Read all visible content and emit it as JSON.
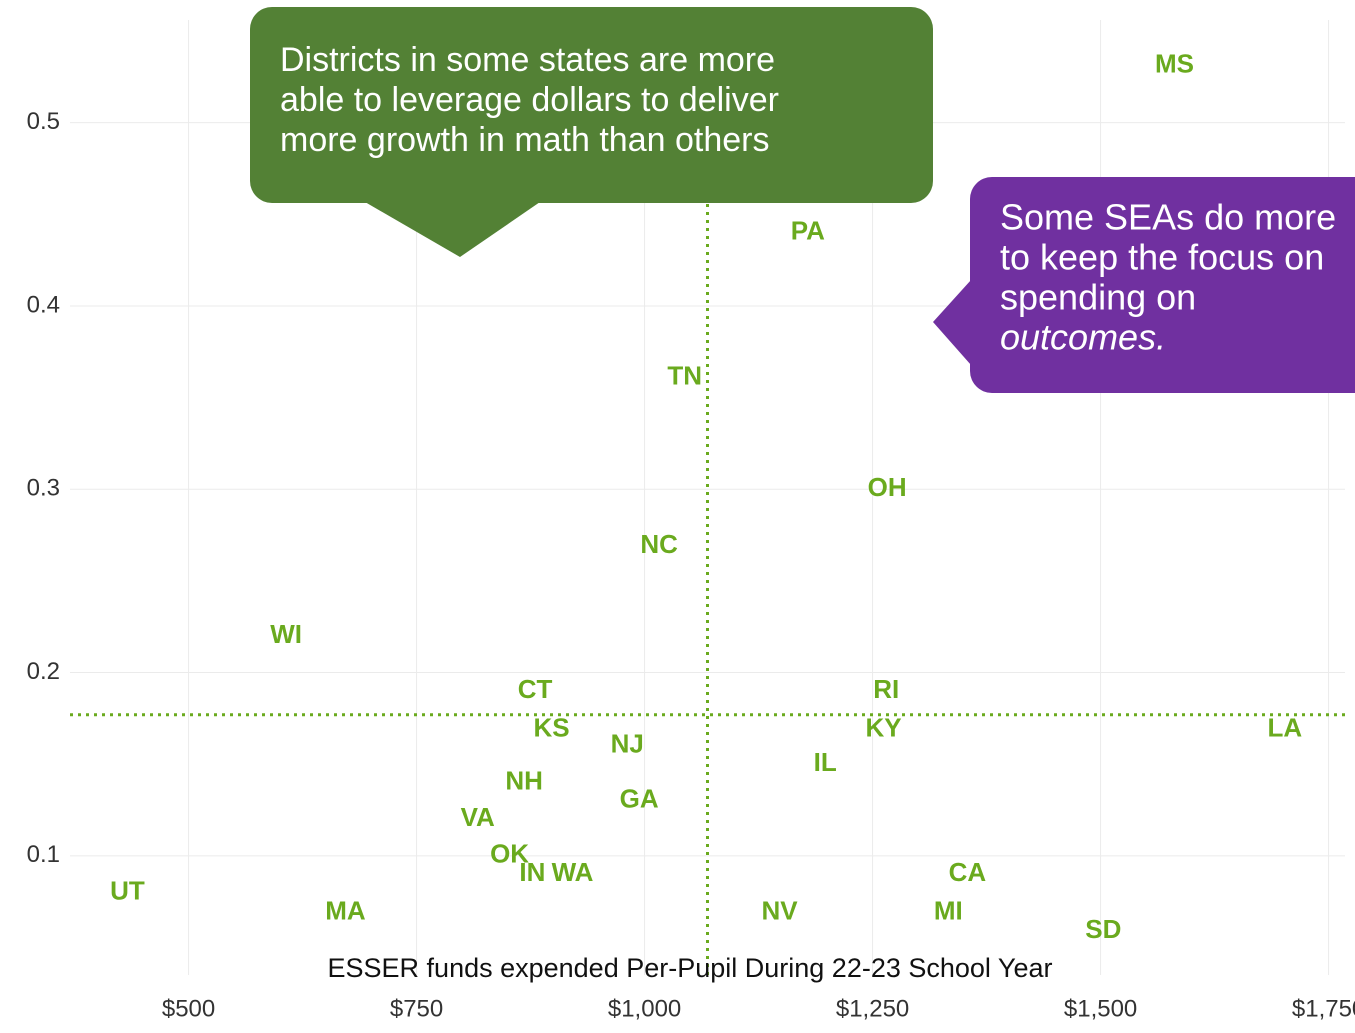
{
  "chart_data": {
    "type": "scatter",
    "labels": [
      "MS",
      "PA",
      "TN",
      "OH",
      "NC",
      "WI",
      "CT",
      "RI",
      "KS",
      "KY",
      "LA",
      "NJ",
      "IL",
      "NH",
      "GA",
      "VA",
      "OK",
      "IN",
      "WA",
      "CA",
      "UT",
      "MA",
      "NV",
      "MI",
      "SD"
    ],
    "x": [
      1581,
      1179,
      1044,
      1266,
      1016,
      607,
      880,
      1265,
      898,
      1262,
      1702,
      981,
      1198,
      868,
      994,
      817,
      852,
      877,
      921,
      1354,
      433,
      672,
      1148,
      1333,
      1503
    ],
    "y": [
      0.531,
      0.44,
      0.361,
      0.3,
      0.269,
      0.22,
      0.19,
      0.19,
      0.169,
      0.169,
      0.169,
      0.16,
      0.15,
      0.14,
      0.13,
      0.12,
      0.1,
      0.09,
      0.09,
      0.09,
      0.08,
      0.069,
      0.069,
      0.069,
      0.059
    ],
    "color": "#6aaa1e",
    "xlim": [
      370,
      1768
    ],
    "ylim": [
      0.035,
      0.556
    ],
    "xticks": [
      {
        "value": 500,
        "label": "$500"
      },
      {
        "value": 750,
        "label": "$750"
      },
      {
        "value": 1000,
        "label": "$1,000"
      },
      {
        "value": 1250,
        "label": "$1,250"
      },
      {
        "value": 1500,
        "label": "$1,500"
      },
      {
        "value": 1750,
        "label": "$1,750"
      }
    ],
    "yticks": [
      0.1,
      0.2,
      0.3,
      0.4,
      0.5
    ],
    "grid": true,
    "xlabel": "ESSER funds expended Per-Pupil During 22-23 School Year",
    "vline": 1069,
    "hline": 0.177,
    "annotations": [
      {
        "color": "#538135",
        "lines": [
          "Districts in some states are more",
          "able to leverage dollars to deliver",
          "more growth in math than others"
        ]
      },
      {
        "color": "#7030a0",
        "lines": [
          "Some SEAs do more",
          "to keep the focus on",
          "spending on",
          "outcomes."
        ]
      }
    ]
  }
}
